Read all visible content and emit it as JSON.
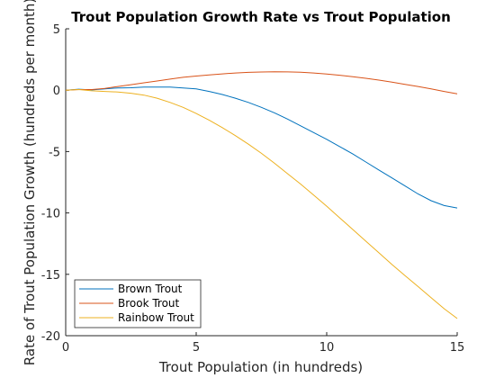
{
  "chart_data": {
    "type": "line",
    "title": "Trout Population Growth Rate vs Trout Population",
    "xlabel": "Trout Population (in hundreds)",
    "ylabel": "Rate of Trout Population Growth (hundreds per month)",
    "xlim": [
      0,
      15
    ],
    "ylim": [
      -20,
      5
    ],
    "xticks": [
      0,
      5,
      10,
      15
    ],
    "yticks": [
      5,
      0,
      -5,
      -10,
      -15,
      -20
    ],
    "grid": false,
    "legend_position": "bottom-left",
    "x": [
      0,
      0.5,
      1,
      1.5,
      2,
      2.5,
      3,
      3.5,
      4,
      4.5,
      5,
      5.5,
      6,
      6.5,
      7,
      7.5,
      8,
      8.5,
      9,
      9.5,
      10,
      10.5,
      11,
      11.5,
      12,
      12.5,
      13,
      13.5,
      14,
      14.5,
      15
    ],
    "series": [
      {
        "name": "Brown Trout",
        "color": "#0072BD",
        "values": [
          0,
          0.08,
          0.02,
          0.1,
          0.18,
          0.2,
          0.25,
          0.26,
          0.25,
          0.18,
          0.1,
          -0.1,
          -0.35,
          -0.65,
          -1.0,
          -1.4,
          -1.85,
          -2.35,
          -2.9,
          -3.45,
          -4.0,
          -4.6,
          -5.2,
          -5.85,
          -6.5,
          -7.15,
          -7.8,
          -8.45,
          -9.0,
          -9.4,
          -9.6
        ]
      },
      {
        "name": "Brook Trout",
        "color": "#D95319",
        "values": [
          0,
          0.05,
          0.05,
          0.15,
          0.3,
          0.45,
          0.6,
          0.75,
          0.9,
          1.05,
          1.15,
          1.25,
          1.33,
          1.4,
          1.45,
          1.48,
          1.5,
          1.49,
          1.46,
          1.4,
          1.32,
          1.22,
          1.1,
          0.97,
          0.82,
          0.66,
          0.48,
          0.3,
          0.1,
          -0.1,
          -0.3
        ]
      },
      {
        "name": "Rainbow Trout",
        "color": "#EDB120",
        "values": [
          0,
          0.05,
          -0.05,
          -0.1,
          -0.15,
          -0.25,
          -0.4,
          -0.65,
          -1.0,
          -1.4,
          -1.9,
          -2.45,
          -3.05,
          -3.7,
          -4.4,
          -5.15,
          -5.95,
          -6.8,
          -7.65,
          -8.55,
          -9.45,
          -10.4,
          -11.35,
          -12.3,
          -13.25,
          -14.2,
          -15.1,
          -16.0,
          -16.9,
          -17.8,
          -18.6
        ]
      }
    ]
  }
}
